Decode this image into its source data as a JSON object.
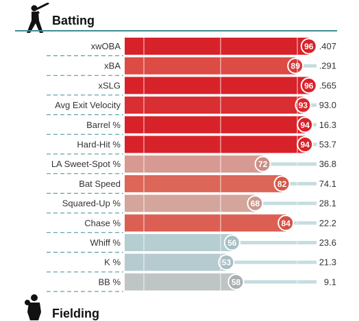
{
  "sections": {
    "batting": {
      "title": "Batting",
      "icon": "batter-icon"
    },
    "fielding": {
      "title": "Fielding",
      "icon": "fielder-icon"
    }
  },
  "chart_data": {
    "type": "bar",
    "title": "Batting",
    "xlim": [
      0,
      100
    ],
    "grid": true,
    "categories": [
      "xwOBA",
      "xBA",
      "xSLG",
      "Avg Exit Velocity",
      "Barrel %",
      "Hard-Hit %",
      "LA Sweet-Spot %",
      "Bat Speed",
      "Squared-Up %",
      "Chase %",
      "Whiff %",
      "K %",
      "BB %"
    ],
    "percentiles": [
      96,
      89,
      96,
      93,
      94,
      94,
      72,
      82,
      68,
      84,
      56,
      53,
      58
    ],
    "values": [
      ".407",
      ".291",
      ".565",
      "93.0",
      "16.3",
      "53.7",
      "36.8",
      "74.1",
      "28.1",
      "22.2",
      "23.6",
      "21.3",
      "9.1"
    ],
    "bar_colors": [
      "#d8222a",
      "#dd4b45",
      "#d8222a",
      "#d92e32",
      "#d8222a",
      "#d8222a",
      "#d79a92",
      "#dc6658",
      "#d3a59b",
      "#dc5f54",
      "#b6cdd1",
      "#b5cbd0",
      "#bfc5c4"
    ],
    "circle_colors": [
      "#d8222a",
      "#d83a38",
      "#d8222a",
      "#d8262c",
      "#d8222a",
      "#d8222a",
      "#cd8e85",
      "#d65747",
      "#c99a90",
      "#d75045",
      "#a6bfc3",
      "#a8bec2",
      "#aab0af"
    ]
  }
}
